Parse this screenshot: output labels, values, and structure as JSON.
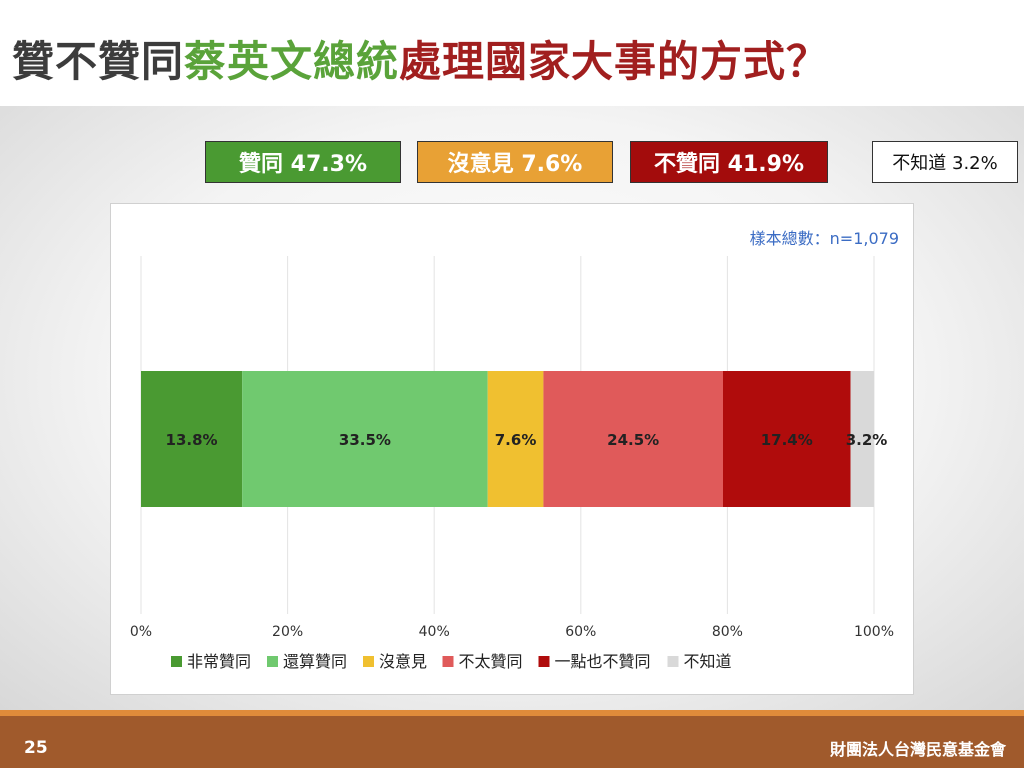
{
  "title": {
    "part1": "贊不贊同",
    "part2": "蔡英文總統",
    "part3": "處理國家大事的方式？"
  },
  "summary": {
    "agree": "贊同 47.3%",
    "no_opinion": "沒意見 7.6%",
    "disagree": "不贊同 41.9%",
    "unknown": "不知道 3.2%"
  },
  "sample_note": "樣本總數：n=1,079",
  "footer": {
    "page_number": "25",
    "organization": "財團法人台灣民意基金會"
  },
  "chart_data": {
    "type": "bar",
    "orientation": "horizontal",
    "stacked": true,
    "xlim": [
      0,
      100
    ],
    "ticks": [
      "0%",
      "20%",
      "40%",
      "60%",
      "80%",
      "100%"
    ],
    "tick_values": [
      0,
      20,
      40,
      60,
      80,
      100
    ],
    "grid": true,
    "legend_position": "bottom",
    "series": [
      {
        "name": "非常贊同",
        "value": 13.8,
        "label": "13.8%",
        "color": "#4a9a32"
      },
      {
        "name": "還算贊同",
        "value": 33.5,
        "label": "33.5%",
        "color": "#70c96f"
      },
      {
        "name": "沒意見",
        "value": 7.6,
        "label": "7.6%",
        "color": "#f0c030"
      },
      {
        "name": "不太贊同",
        "value": 24.5,
        "label": "24.5%",
        "color": "#e05a5a"
      },
      {
        "name": "一點也不贊同",
        "value": 17.4,
        "label": "17.4%",
        "color": "#b00c0c"
      },
      {
        "name": "不知道",
        "value": 3.2,
        "label": "3.2%",
        "color": "#d9d9d9"
      }
    ]
  }
}
